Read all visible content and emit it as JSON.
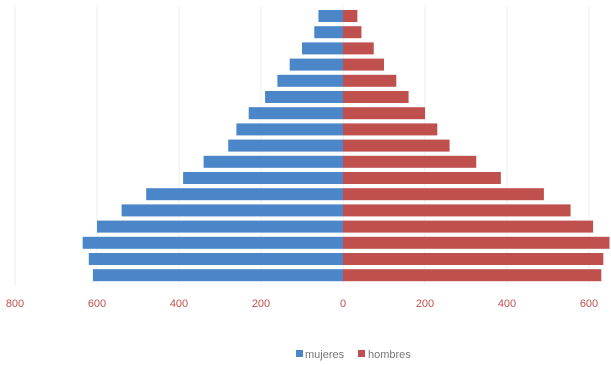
{
  "chart_data": {
    "type": "bar",
    "orientation": "horizontal-population-pyramid",
    "x_ticks": [
      "800",
      "600",
      "400",
      "200",
      "0",
      "200",
      "400",
      "600"
    ],
    "x_tick_values": [
      -800,
      -600,
      -400,
      -200,
      0,
      200,
      400,
      600
    ],
    "xlim": [
      -800,
      650
    ],
    "grid": true,
    "legend_position": "bottom",
    "series": [
      {
        "name": "mujeres",
        "color": "#4a86c8",
        "values": [
          -60,
          -70,
          -100,
          -130,
          -160,
          -190,
          -230,
          -260,
          -280,
          -340,
          -390,
          -480,
          -540,
          -600,
          -635,
          -620,
          -610
        ]
      },
      {
        "name": "hombres",
        "color": "#c0504d",
        "values": [
          35,
          45,
          75,
          100,
          130,
          160,
          200,
          230,
          260,
          325,
          385,
          490,
          555,
          610,
          650,
          635,
          630
        ]
      }
    ],
    "colors": {
      "tick_label": "#c0504d",
      "legend_text": "#777777",
      "grid": "#eeeeee"
    }
  }
}
